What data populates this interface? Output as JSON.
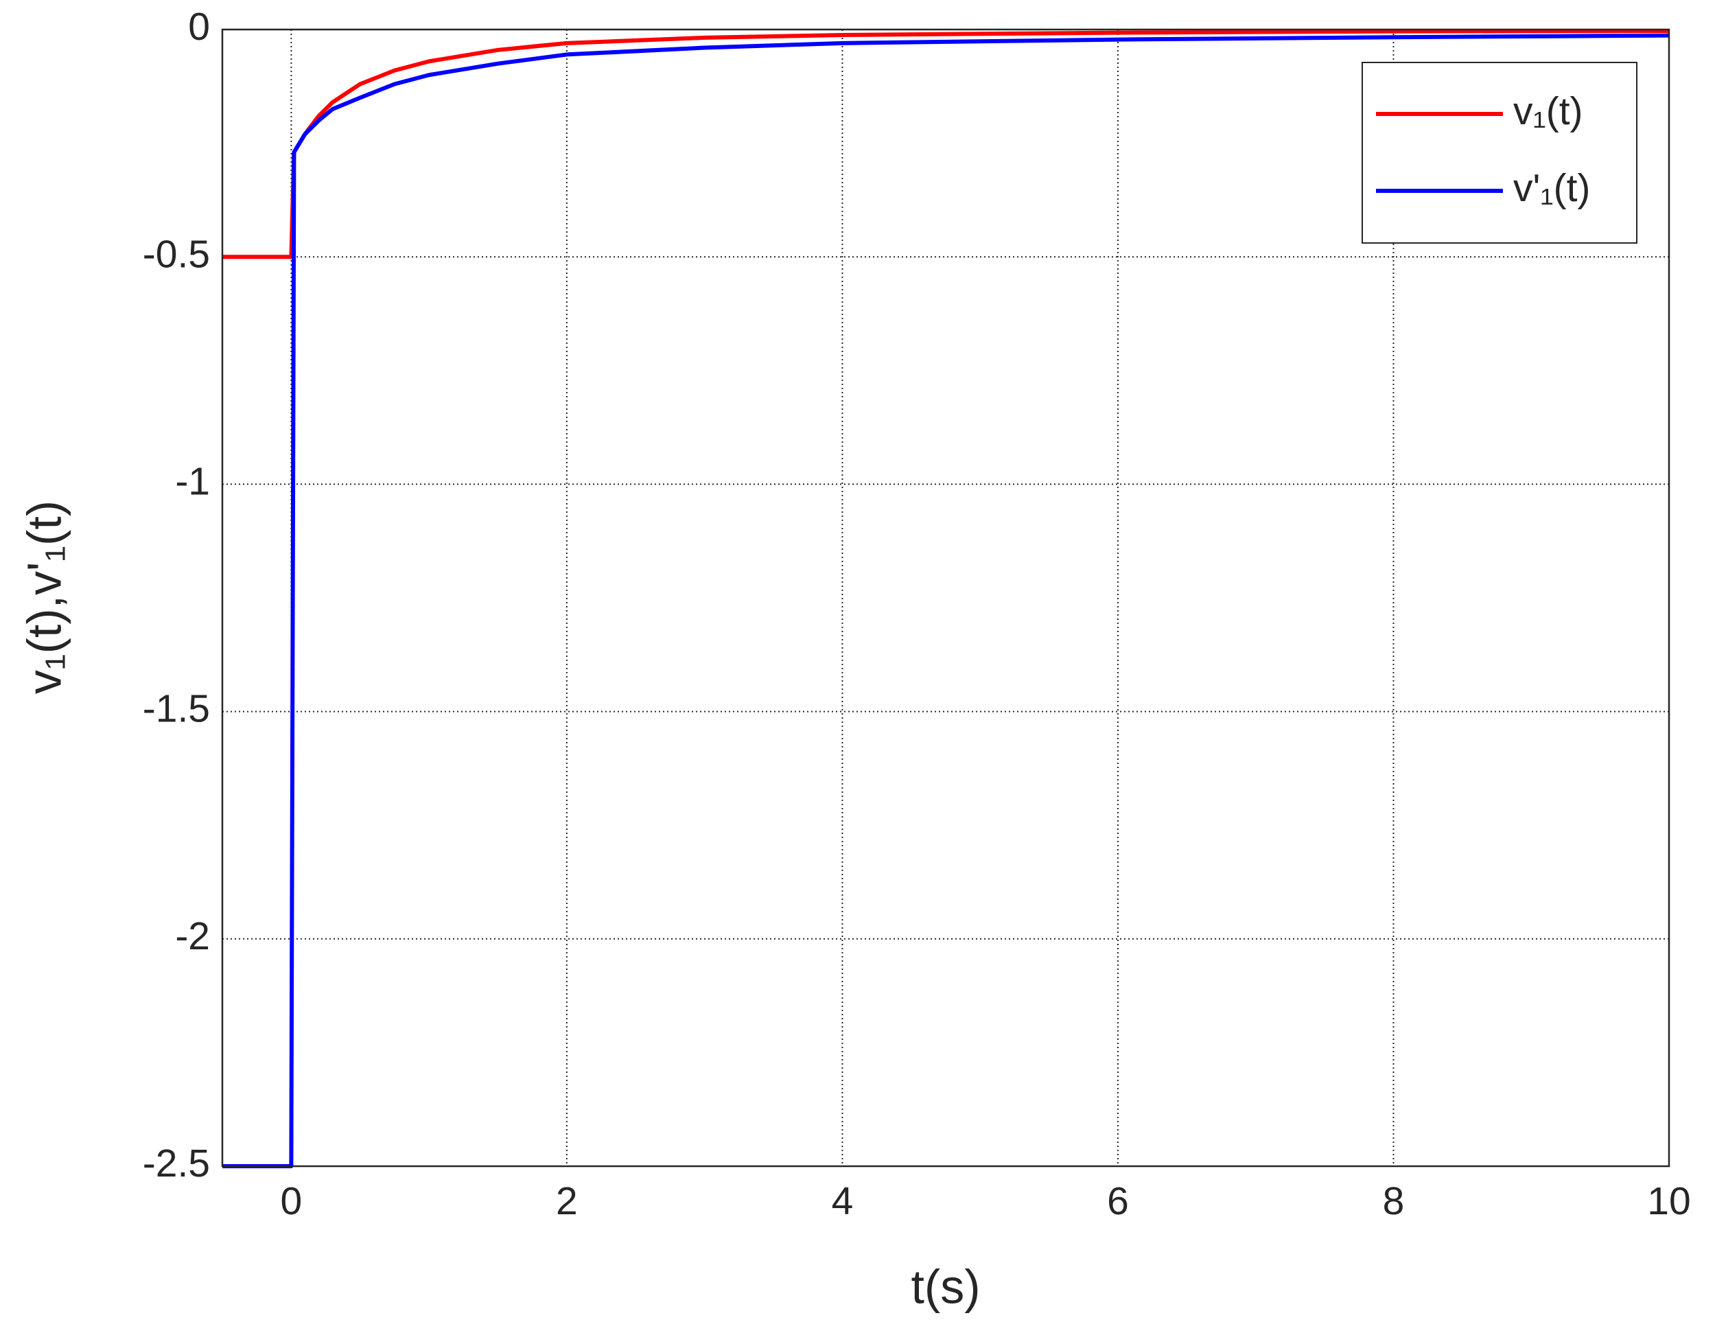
{
  "chart_data": {
    "type": "line",
    "xlabel": "t(s)",
    "ylabel": "v₁(t),v'₁(t)",
    "x": [
      -0.5,
      0,
      0.02,
      0.1,
      0.2,
      0.3,
      0.5,
      0.75,
      1,
      1.5,
      2,
      3,
      4,
      6,
      8,
      10
    ],
    "series": [
      {
        "name": "v₁(t)",
        "color": "#ff0000",
        "values": [
          -0.5,
          -0.5,
          -0.27,
          -0.23,
          -0.19,
          -0.16,
          -0.12,
          -0.09,
          -0.07,
          -0.045,
          -0.03,
          -0.018,
          -0.012,
          -0.007,
          -0.004,
          -0.003
        ]
      },
      {
        "name": "v'₁(t)",
        "color": "#0000ff",
        "values": [
          -2.5,
          -2.5,
          -0.27,
          -0.23,
          -0.2,
          -0.175,
          -0.15,
          -0.12,
          -0.1,
          -0.075,
          -0.055,
          -0.04,
          -0.03,
          -0.022,
          -0.017,
          -0.013
        ]
      }
    ],
    "xlim": [
      -0.5,
      10
    ],
    "xticks": [
      0,
      2,
      4,
      6,
      8,
      10
    ],
    "ylim": [
      -2.5,
      0
    ],
    "yticks": [
      -2.5,
      -2,
      -1.5,
      -1,
      -0.5,
      0
    ],
    "grid": true,
    "legend": "northeast"
  }
}
